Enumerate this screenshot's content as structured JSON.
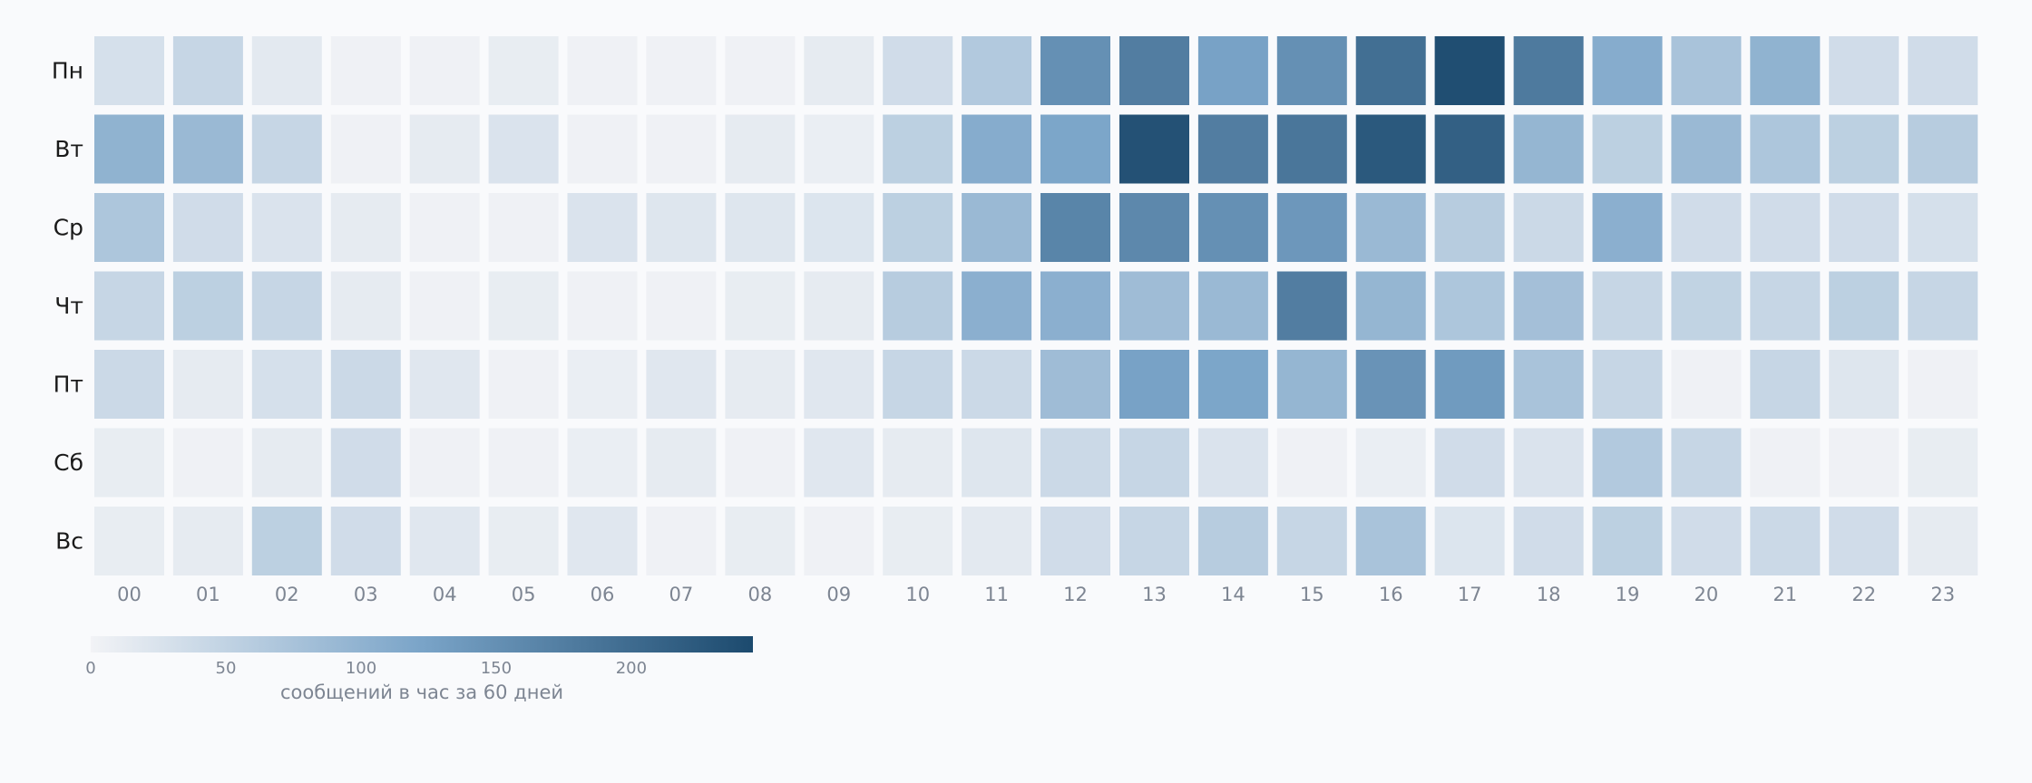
{
  "chart_data": {
    "type": "heatmap",
    "rows": [
      "Пн",
      "Вт",
      "Ср",
      "Чт",
      "Пт",
      "Сб",
      "Вс"
    ],
    "columns": [
      "00",
      "01",
      "02",
      "03",
      "04",
      "05",
      "06",
      "07",
      "08",
      "09",
      "10",
      "11",
      "12",
      "13",
      "14",
      "15",
      "16",
      "17",
      "18",
      "19",
      "20",
      "21",
      "22",
      "23"
    ],
    "values": [
      [
        30,
        45,
        15,
        3,
        3,
        10,
        3,
        3,
        3,
        12,
        35,
        65,
        150,
        175,
        125,
        150,
        195,
        240,
        180,
        110,
        75,
        100,
        35,
        35
      ],
      [
        100,
        90,
        45,
        3,
        12,
        25,
        3,
        3,
        12,
        8,
        55,
        110,
        120,
        235,
        175,
        185,
        225,
        215,
        95,
        55,
        90,
        70,
        55,
        60
      ],
      [
        70,
        35,
        25,
        12,
        3,
        3,
        25,
        20,
        20,
        22,
        55,
        90,
        165,
        160,
        150,
        140,
        90,
        60,
        40,
        105,
        35,
        35,
        35,
        30
      ],
      [
        45,
        55,
        45,
        12,
        3,
        10,
        3,
        3,
        10,
        12,
        60,
        105,
        105,
        85,
        90,
        175,
        95,
        70,
        80,
        45,
        50,
        45,
        55,
        45
      ],
      [
        40,
        12,
        30,
        40,
        18,
        3,
        8,
        18,
        12,
        18,
        45,
        40,
        85,
        125,
        120,
        95,
        145,
        135,
        75,
        45,
        3,
        45,
        20,
        3
      ],
      [
        10,
        3,
        12,
        35,
        3,
        3,
        8,
        12,
        3,
        18,
        12,
        20,
        40,
        45,
        25,
        3,
        8,
        35,
        25,
        65,
        45,
        3,
        3,
        10
      ],
      [
        10,
        12,
        55,
        35,
        18,
        10,
        18,
        3,
        10,
        3,
        10,
        15,
        35,
        45,
        60,
        45,
        75,
        22,
        35,
        55,
        35,
        40,
        35,
        12
      ]
    ],
    "colorbar": {
      "min": 0,
      "max": 245,
      "ticks": [
        0,
        50,
        100,
        150,
        200
      ],
      "label": "сообщений в час за 60 дней",
      "colors": [
        "#f2f3f6",
        "#7aa4c8",
        "#1c4a6e"
      ]
    },
    "grid": false
  }
}
